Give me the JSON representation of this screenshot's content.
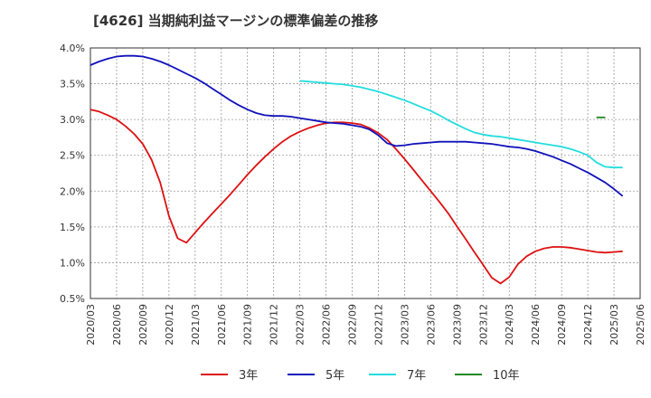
{
  "chart_data": {
    "type": "line",
    "title": "[4626]  当期純利益マージンの標準偏差の推移",
    "xlabel": "",
    "ylabel": "",
    "ylim": [
      0.5,
      4.0
    ],
    "y_ticks": [
      "0.5%",
      "1.0%",
      "1.5%",
      "2.0%",
      "2.5%",
      "3.0%",
      "3.5%",
      "4.0%"
    ],
    "x_ticks": [
      "2020/03",
      "2020/06",
      "2020/09",
      "2020/12",
      "2021/03",
      "2021/06",
      "2021/09",
      "2021/12",
      "2022/03",
      "2022/06",
      "2022/09",
      "2022/12",
      "2023/03",
      "2023/06",
      "2023/09",
      "2023/12",
      "2024/03",
      "2024/06",
      "2024/09",
      "2024/12",
      "2025/03",
      "2025/06"
    ],
    "grid": true,
    "legend_position": "bottom",
    "series": [
      {
        "name": "3年",
        "color": "#dd1111",
        "start": "2020/03",
        "values": [
          3.14,
          3.11,
          3.06,
          3.0,
          2.91,
          2.8,
          2.66,
          2.44,
          2.12,
          1.65,
          1.34,
          1.28,
          1.42,
          1.56,
          1.69,
          1.82,
          1.95,
          2.09,
          2.23,
          2.36,
          2.48,
          2.59,
          2.69,
          2.77,
          2.83,
          2.88,
          2.92,
          2.95,
          2.96,
          2.96,
          2.95,
          2.93,
          2.88,
          2.81,
          2.72,
          2.59,
          2.45,
          2.3,
          2.15,
          2.0,
          1.85,
          1.69,
          1.51,
          1.33,
          1.15,
          0.97,
          0.79,
          0.71,
          0.8,
          0.98,
          1.09,
          1.16,
          1.2,
          1.22,
          1.22,
          1.21,
          1.19,
          1.17,
          1.15,
          1.14,
          1.15,
          1.16
        ]
      },
      {
        "name": "5年",
        "color": "#1111bb",
        "start": "2020/03",
        "values": [
          3.76,
          3.81,
          3.85,
          3.88,
          3.89,
          3.89,
          3.88,
          3.85,
          3.81,
          3.76,
          3.7,
          3.64,
          3.58,
          3.51,
          3.43,
          3.35,
          3.27,
          3.2,
          3.14,
          3.09,
          3.06,
          3.05,
          3.05,
          3.04,
          3.02,
          3.0,
          2.98,
          2.96,
          2.95,
          2.94,
          2.92,
          2.9,
          2.86,
          2.78,
          2.67,
          2.63,
          2.64,
          2.66,
          2.67,
          2.68,
          2.69,
          2.69,
          2.69,
          2.69,
          2.68,
          2.67,
          2.66,
          2.64,
          2.62,
          2.61,
          2.59,
          2.56,
          2.52,
          2.48,
          2.43,
          2.38,
          2.32,
          2.26,
          2.19,
          2.12,
          2.03,
          1.93
        ]
      },
      {
        "name": "7年",
        "color": "#22dddd",
        "start": "2022/03",
        "values": [
          3.54,
          3.53,
          3.52,
          3.51,
          3.5,
          3.49,
          3.47,
          3.45,
          3.42,
          3.39,
          3.35,
          3.31,
          3.27,
          3.22,
          3.17,
          3.12,
          3.06,
          2.99,
          2.93,
          2.87,
          2.82,
          2.79,
          2.77,
          2.76,
          2.74,
          2.72,
          2.7,
          2.68,
          2.66,
          2.64,
          2.62,
          2.59,
          2.55,
          2.5,
          2.4,
          2.34,
          2.33,
          2.33
        ]
      },
      {
        "name": "10年",
        "color": "#228822",
        "start": "2025/01",
        "values": [
          3.03,
          3.03
        ]
      }
    ]
  }
}
